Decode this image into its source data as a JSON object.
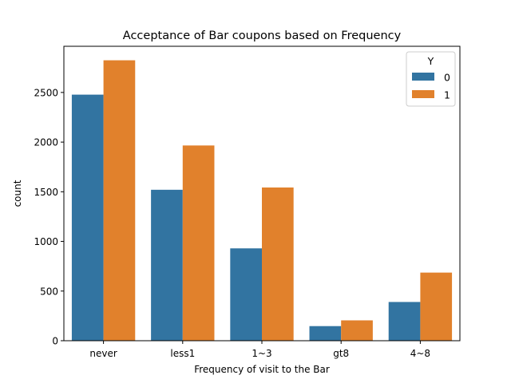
{
  "chart_data": {
    "type": "bar",
    "title": "Acceptance of Bar coupons based on Frequency",
    "xlabel": "Frequency of visit to the Bar",
    "ylabel": "count",
    "categories": [
      "never",
      "less1",
      "1~3",
      "gt8",
      "4~8"
    ],
    "ylim": [
      0,
      2965
    ],
    "yticks": [
      0,
      500,
      1000,
      1500,
      2000,
      2500
    ],
    "legend": {
      "title": "Y",
      "position": "upper-right"
    },
    "series": [
      {
        "name": "0",
        "color": "#3274a1",
        "values": [
          2478,
          1520,
          930,
          147,
          390
        ]
      },
      {
        "name": "1",
        "color": "#e1812c",
        "values": [
          2824,
          1966,
          1543,
          205,
          686
        ]
      }
    ],
    "grid": false
  }
}
